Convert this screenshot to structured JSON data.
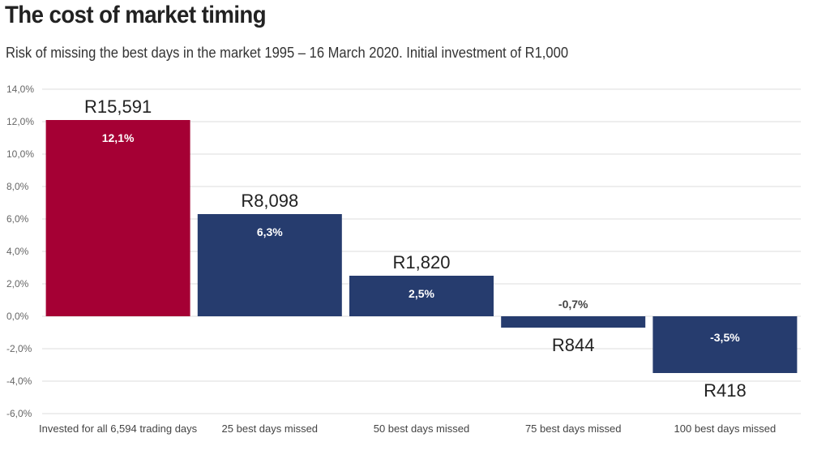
{
  "header": {
    "title": "The cost of market timing",
    "subtitle": "Risk of missing the best days in the market 1995 – 16 March 2020. Initial investment of R1,000"
  },
  "colors": {
    "highlight_bar": "#a50034",
    "bar": "#263c6e",
    "grid": "#dddddd"
  },
  "chart_data": {
    "type": "bar",
    "title": "The cost of market timing",
    "subtitle": "Risk of missing the best days in the market 1995 – 16 March 2020. Initial investment of R1,000",
    "categories": [
      "Invested for all 6,594 trading days",
      "25 best days missed",
      "50 best days missed",
      "75 best days missed",
      "100 best days missed"
    ],
    "values": [
      12.1,
      6.3,
      2.5,
      -0.7,
      -3.5
    ],
    "percent_labels": [
      "12,1%",
      "6,3%",
      "2,5%",
      "-0,7%",
      "-3,5%"
    ],
    "final_values": [
      "R15,591",
      "R8,098",
      "R1,820",
      "R844",
      "R418"
    ],
    "ylim": [
      -6,
      14
    ],
    "yticks": [
      -6,
      -4,
      -2,
      0,
      2,
      4,
      6,
      8,
      10,
      12,
      14
    ],
    "ytick_labels": [
      "-6,0%",
      "-4,0%",
      "-2,0%",
      "0,0%",
      "2,0%",
      "4,0%",
      "6,0%",
      "8,0%",
      "10,0%",
      "12,0%",
      "14,0%"
    ],
    "xlabel": "",
    "ylabel": "",
    "grid": true,
    "legend": "none"
  }
}
